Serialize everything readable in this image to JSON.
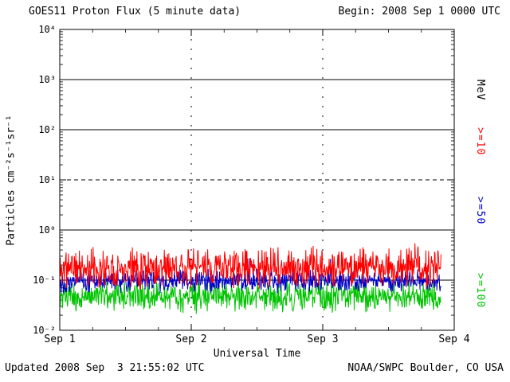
{
  "title": "GOES11 Proton Flux (5 minute data)",
  "begin_label": "Begin: 2008 Sep 1 0000 UTC",
  "footer": {
    "updated": "Updated 2008 Sep  3 21:55:02 UTC",
    "source": "NOAA/SWPC Boulder, CO USA"
  },
  "axes": {
    "xlabel": "Universal Time",
    "ylabel": "Particles cm⁻²s⁻¹sr⁻¹",
    "y_ticks": [
      "10⁴",
      "10³",
      "10²",
      "10¹",
      "10⁰",
      "10⁻¹",
      "10⁻²"
    ],
    "x_ticks": [
      "Sep 1",
      "Sep 2",
      "Sep 3",
      "Sep 4"
    ]
  },
  "right_labels": [
    {
      "text": "MeV",
      "color": "#000000"
    },
    {
      "text": ">=10",
      "color": "#ff0000"
    },
    {
      "text": ">=50",
      "color": "#0000cc"
    },
    {
      "text": ">=100",
      "color": "#00c400"
    }
  ],
  "chart_data": {
    "type": "line",
    "title": "GOES11 Proton Flux (5 minute data)",
    "begin": "2008 Sep 1 0000 UTC",
    "updated": "2008 Sep 3 21:55:02 UTC",
    "xlabel": "Universal Time",
    "ylabel": "Particles cm⁻²s⁻¹sr⁻¹",
    "y_scale": "log10",
    "ylim": [
      0.01,
      10000
    ],
    "x_ticks": [
      "Sep 1",
      "Sep 2",
      "Sep 3",
      "Sep 4"
    ],
    "cadence_minutes": 5,
    "points": 836,
    "x_span_days": 3,
    "grid_hlines": [
      {
        "value": 1000,
        "style": "solid"
      },
      {
        "value": 100,
        "style": "solid"
      },
      {
        "value": 10,
        "style": "dashed"
      },
      {
        "value": 1,
        "style": "solid"
      },
      {
        "value": 0.1,
        "style": "solid"
      }
    ],
    "grid_vlines_days": [
      1,
      2
    ],
    "series": [
      {
        "name": ">=100 MeV",
        "color": "#00c400",
        "typical_flux": 0.05,
        "log10_mean": -1.33,
        "log10_spread": 0.22,
        "seed": 33
      },
      {
        "name": ">=50 MeV",
        "color": "#0000cc",
        "typical_flux": 0.1,
        "log10_mean": -1.02,
        "log10_spread": 0.16,
        "seed": 22
      },
      {
        "name": ">=10 MeV",
        "color": "#ff0000",
        "typical_flux": 0.2,
        "log10_mean": -0.75,
        "log10_spread": 0.28,
        "seed": 11
      }
    ]
  }
}
